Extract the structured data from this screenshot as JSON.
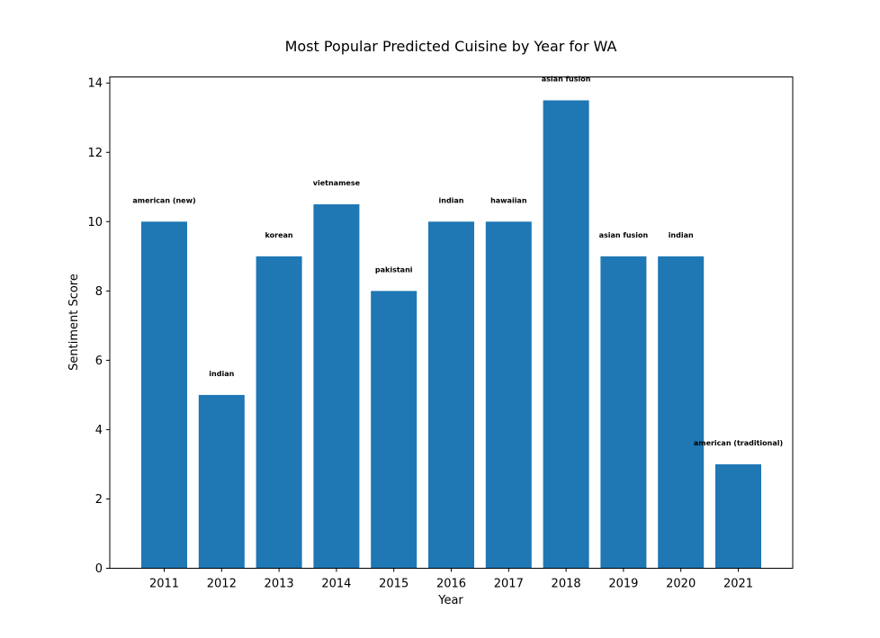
{
  "chart_data": {
    "type": "bar",
    "title": "Most Popular Predicted Cuisine by Year for WA",
    "xlabel": "Year",
    "ylabel": "Sentiment Score",
    "categories": [
      "2011",
      "2012",
      "2013",
      "2014",
      "2015",
      "2016",
      "2017",
      "2018",
      "2019",
      "2020",
      "2021"
    ],
    "values": [
      10,
      5,
      9,
      10.5,
      8,
      10,
      10,
      13.5,
      9,
      9,
      3
    ],
    "bar_labels": [
      "american (new)",
      "indian",
      "korean",
      "vietnamese",
      "pakistani",
      "indian",
      "hawaiian",
      "asian fusion",
      "asian fusion",
      "indian",
      "american (traditional)"
    ],
    "yticks": [
      "0",
      "2",
      "4",
      "6",
      "8",
      "10",
      "12",
      "14"
    ],
    "ylim": [
      0,
      14.175
    ],
    "bar_color": "#1f77b4",
    "grid": false,
    "legend": "none"
  }
}
